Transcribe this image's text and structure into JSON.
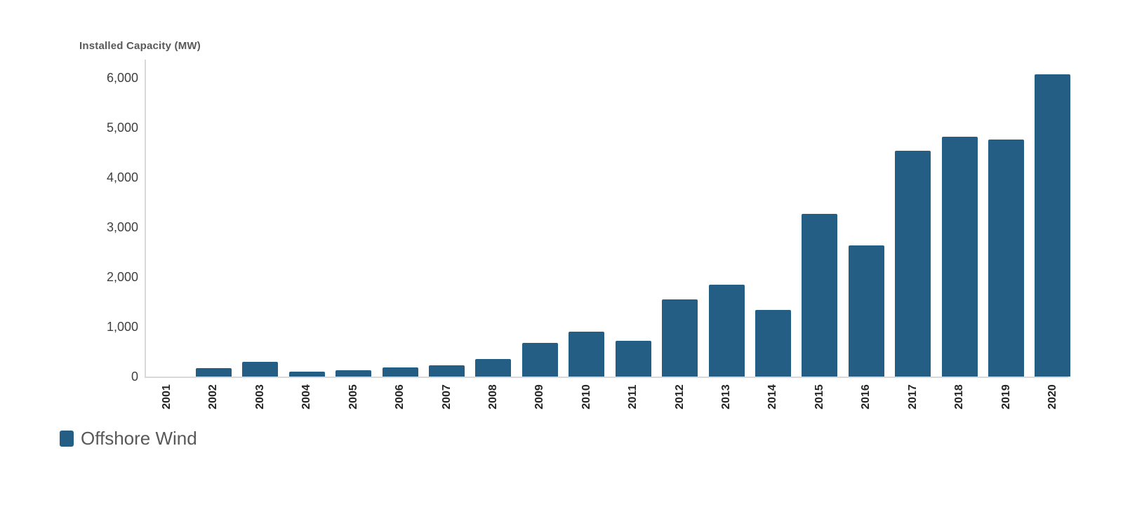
{
  "title": "Installed Capacity (MW)",
  "legend": {
    "label": "Offshore Wind"
  },
  "colors": {
    "bar": "#245E84",
    "axis_line": "#D9D9D9",
    "title_text": "#595959",
    "y_tick_text": "#404040",
    "year_label_text": "#262626",
    "legend_text": "#595959",
    "background": "#FFFFFF"
  },
  "chart_data": {
    "type": "bar",
    "title": "Installed Capacity (MW)",
    "xlabel": "",
    "ylabel": "Installed Capacity (MW)",
    "series_name": "Offshore Wind",
    "categories": [
      "2001",
      "2002",
      "2003",
      "2004",
      "2005",
      "2006",
      "2007",
      "2008",
      "2009",
      "2010",
      "2011",
      "2012",
      "2013",
      "2014",
      "2015",
      "2016",
      "2017",
      "2018",
      "2019",
      "2020"
    ],
    "values": [
      0,
      170,
      290,
      100,
      120,
      190,
      220,
      350,
      680,
      900,
      720,
      1550,
      1850,
      1340,
      3270,
      2630,
      4540,
      4820,
      4760,
      6070
    ],
    "ylim": [
      0,
      6400
    ],
    "y_ticks": [
      0,
      1000,
      2000,
      3000,
      4000,
      5000,
      6000
    ],
    "y_tick_labels": [
      "0",
      "1,000",
      "2,000",
      "3,000",
      "4,000",
      "5,000",
      "6,000"
    ],
    "grid": false,
    "bar_color": "#245E84",
    "legend_position": "bottom-left",
    "x_label_rotation": -90
  }
}
